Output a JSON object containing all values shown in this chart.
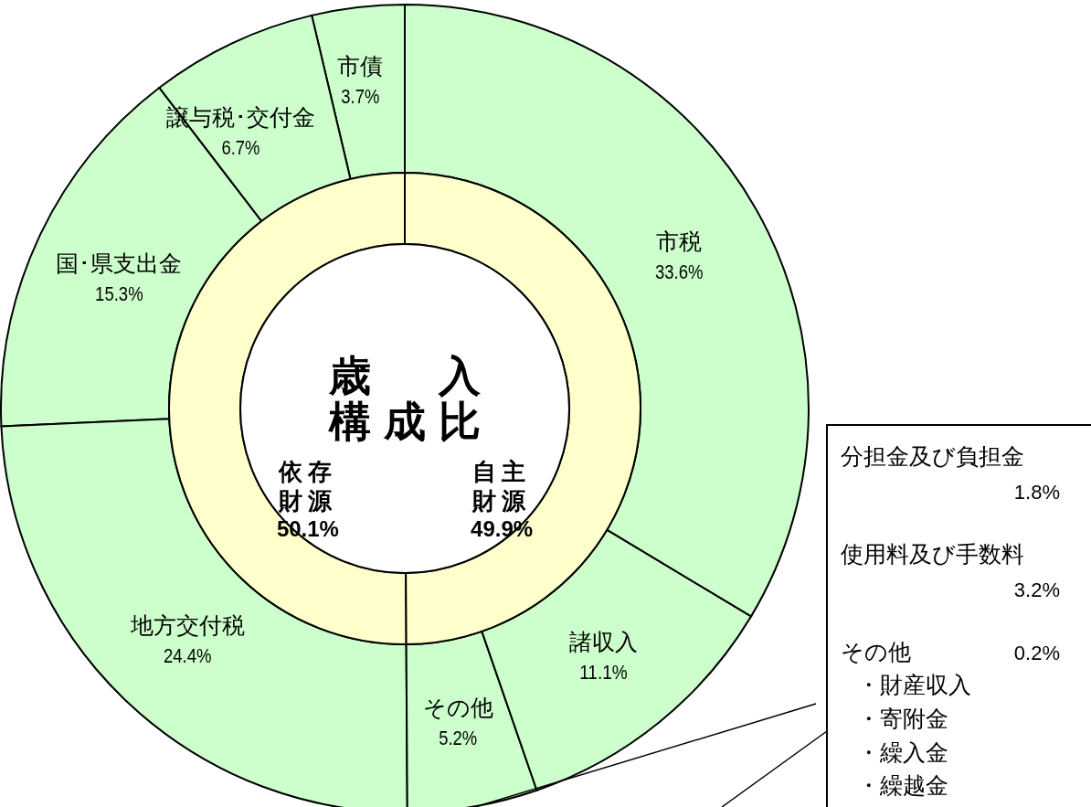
{
  "chart_data": [
    {
      "type": "donut",
      "categories": [
        "市税",
        "諸収入",
        "その他",
        "地方交付税",
        "国･県支出金",
        "譲与税･交付金",
        "市債"
      ],
      "values": [
        33.6,
        11.1,
        5.2,
        24.4,
        15.3,
        6.7,
        3.7
      ],
      "value_labels": [
        "33.6%",
        "11.1%",
        "5.2%",
        "24.4%",
        "15.3%",
        "6.7%",
        "3.7%"
      ],
      "colors": [
        "#ccffcc",
        "#ccffcc",
        "#ccffcc",
        "#ccffcc",
        "#ccffcc",
        "#ccffcc",
        "#ccffcc"
      ],
      "annotations": [
        "分担金及び負担金",
        "1.8%",
        "使用料及び手数料",
        "3.2%",
        "その他",
        "0.2%",
        "・財産収入",
        "・寄附金",
        "・繰入金",
        "・繰越金"
      ]
    },
    {
      "type": "donut",
      "title": "歳入構成比",
      "categories": [
        "自主財源",
        "依存財源"
      ],
      "values": [
        49.9,
        50.1
      ],
      "value_labels": [
        "49.9%",
        "50.1%"
      ],
      "colors": [
        "#ffffcc",
        "#ffffcc"
      ]
    }
  ]
}
